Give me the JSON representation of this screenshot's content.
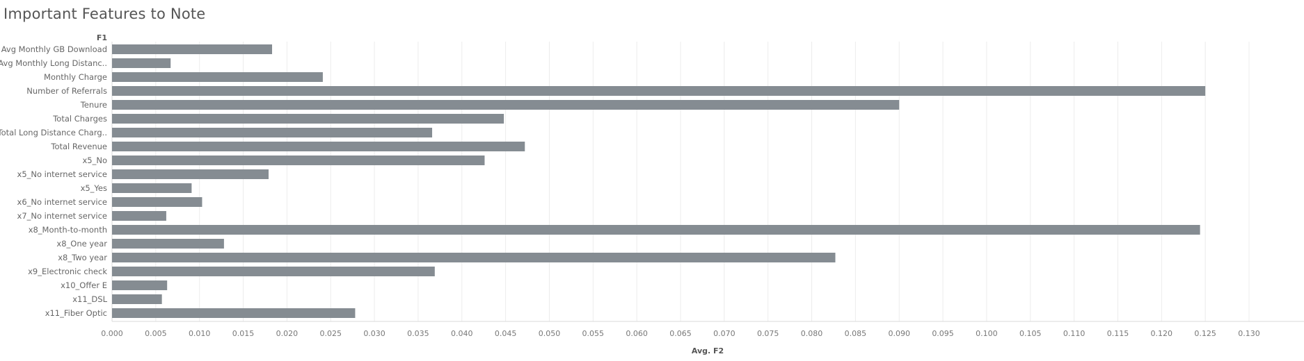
{
  "title": "Important Features to Note",
  "chart_data": {
    "type": "bar",
    "orientation": "horizontal",
    "y_header": "F1",
    "xlabel": "Avg. F2",
    "xlim": [
      0,
      0.13
    ],
    "x_ticks": [
      "0.000",
      "0.005",
      "0.010",
      "0.015",
      "0.020",
      "0.025",
      "0.030",
      "0.035",
      "0.040",
      "0.045",
      "0.050",
      "0.055",
      "0.060",
      "0.065",
      "0.070",
      "0.075",
      "0.080",
      "0.085",
      "0.090",
      "0.095",
      "0.100",
      "0.105",
      "0.110",
      "0.115",
      "0.120",
      "0.125",
      "0.130"
    ],
    "grid": true,
    "bar_color": "#858c92",
    "categories": [
      "Avg Monthly GB Download",
      "Avg Monthly Long Distanc..",
      "Monthly Charge",
      "Number of Referrals",
      "Tenure",
      "Total Charges",
      "Total Long Distance Charg..",
      "Total Revenue",
      "x5_No",
      "x5_No internet service",
      "x5_Yes",
      "x6_No internet service",
      "x7_No internet service",
      "x8_Month-to-month",
      "x8_One year",
      "x8_Two year",
      "x9_Electronic check",
      "x10_Offer E",
      "x11_DSL",
      "x11_Fiber Optic"
    ],
    "values": [
      0.0183,
      0.0067,
      0.0241,
      0.125,
      0.09,
      0.0448,
      0.0366,
      0.0472,
      0.0426,
      0.0179,
      0.0091,
      0.0103,
      0.0062,
      0.1244,
      0.0128,
      0.0827,
      0.0369,
      0.0063,
      0.0057,
      0.0278
    ]
  }
}
